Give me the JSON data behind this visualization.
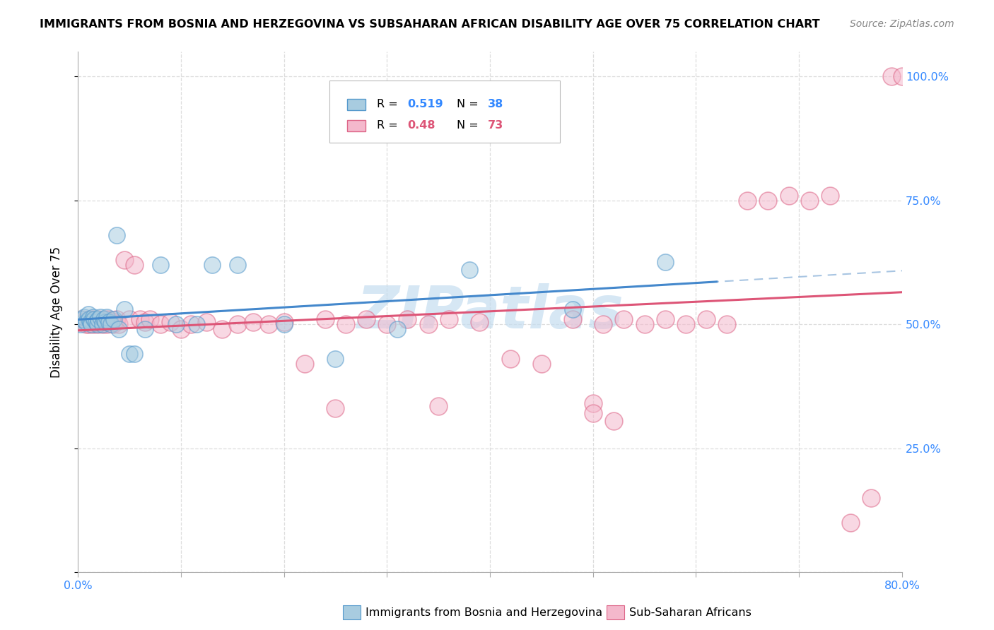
{
  "title": "IMMIGRANTS FROM BOSNIA AND HERZEGOVINA VS SUBSAHARAN AFRICAN DISABILITY AGE OVER 75 CORRELATION CHART",
  "source": "Source: ZipAtlas.com",
  "ylabel": "Disability Age Over 75",
  "xmin": 0.0,
  "xmax": 0.8,
  "ymin": 0.0,
  "ymax": 1.05,
  "color_blue": "#a8cce0",
  "color_pink": "#f4b8cc",
  "edge_blue": "#5599cc",
  "edge_pink": "#dd6688",
  "trendline_blue": "#4488cc",
  "trendline_pink": "#dd5577",
  "trendline_dashed": "#99bbdd",
  "watermark": "ZIPatlas",
  "watermark_color": "#c5ddf0",
  "R_bosnia": 0.519,
  "N_bosnia": 38,
  "R_subsaharan": 0.48,
  "N_subsaharan": 73,
  "grid_color": "#dddddd",
  "label_color": "#3388ff",
  "bosnia_x": [
    0.003,
    0.005,
    0.006,
    0.008,
    0.01,
    0.011,
    0.012,
    0.013,
    0.015,
    0.016,
    0.018,
    0.019,
    0.02,
    0.022,
    0.024,
    0.025,
    0.027,
    0.028,
    0.03,
    0.032,
    0.035,
    0.038,
    0.04,
    0.045,
    0.05,
    0.055,
    0.065,
    0.08,
    0.095,
    0.115,
    0.13,
    0.155,
    0.2,
    0.25,
    0.31,
    0.38,
    0.48,
    0.57
  ],
  "bosnia_y": [
    0.5,
    0.51,
    0.515,
    0.505,
    0.52,
    0.51,
    0.505,
    0.5,
    0.515,
    0.51,
    0.505,
    0.5,
    0.51,
    0.515,
    0.5,
    0.51,
    0.505,
    0.515,
    0.505,
    0.5,
    0.51,
    0.68,
    0.49,
    0.53,
    0.44,
    0.44,
    0.49,
    0.62,
    0.5,
    0.5,
    0.62,
    0.62,
    0.5,
    0.43,
    0.49,
    0.61,
    0.53,
    0.625
  ],
  "sub_x": [
    0.002,
    0.004,
    0.006,
    0.008,
    0.01,
    0.011,
    0.012,
    0.013,
    0.015,
    0.016,
    0.018,
    0.019,
    0.02,
    0.022,
    0.024,
    0.025,
    0.027,
    0.028,
    0.03,
    0.032,
    0.034,
    0.036,
    0.038,
    0.04,
    0.045,
    0.05,
    0.055,
    0.06,
    0.065,
    0.07,
    0.08,
    0.09,
    0.1,
    0.11,
    0.125,
    0.14,
    0.155,
    0.17,
    0.185,
    0.2,
    0.22,
    0.24,
    0.26,
    0.28,
    0.3,
    0.32,
    0.34,
    0.36,
    0.39,
    0.42,
    0.45,
    0.48,
    0.51,
    0.53,
    0.55,
    0.57,
    0.59,
    0.61,
    0.63,
    0.65,
    0.67,
    0.69,
    0.71,
    0.73,
    0.75,
    0.77,
    0.79,
    0.8,
    0.25,
    0.35,
    0.5,
    0.5,
    0.52
  ],
  "sub_y": [
    0.505,
    0.51,
    0.505,
    0.5,
    0.51,
    0.5,
    0.505,
    0.51,
    0.5,
    0.51,
    0.505,
    0.5,
    0.51,
    0.505,
    0.5,
    0.505,
    0.51,
    0.5,
    0.51,
    0.505,
    0.5,
    0.505,
    0.51,
    0.5,
    0.63,
    0.51,
    0.62,
    0.51,
    0.505,
    0.51,
    0.5,
    0.505,
    0.49,
    0.5,
    0.505,
    0.49,
    0.5,
    0.505,
    0.5,
    0.505,
    0.42,
    0.51,
    0.5,
    0.51,
    0.5,
    0.51,
    0.5,
    0.51,
    0.505,
    0.43,
    0.42,
    0.51,
    0.5,
    0.51,
    0.5,
    0.51,
    0.5,
    0.51,
    0.5,
    0.75,
    0.75,
    0.76,
    0.75,
    0.76,
    0.1,
    0.15,
    1.0,
    1.0,
    0.33,
    0.335,
    0.34,
    0.32,
    0.305
  ],
  "ytick_pct": [
    0.0,
    0.25,
    0.5,
    0.75,
    1.0
  ],
  "ytick_labels_right": [
    "",
    "25.0%",
    "50.0%",
    "75.0%",
    "100.0%"
  ],
  "xtick_vals": [
    0.0,
    0.1,
    0.2,
    0.3,
    0.4,
    0.5,
    0.6,
    0.7,
    0.8
  ],
  "xtick_labels": [
    "0.0%",
    "",
    "",
    "",
    "",
    "",
    "",
    "",
    "80.0%"
  ]
}
